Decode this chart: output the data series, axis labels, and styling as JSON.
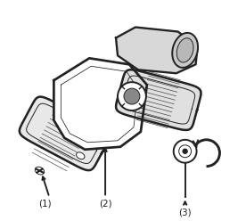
{
  "bg_color": "#ffffff",
  "line_color": "#222222",
  "label1": "(1)",
  "label2": "(2)",
  "label3": "(3)",
  "figsize": [
    2.76,
    2.48
  ],
  "dpi": 100,
  "xlim": [
    0,
    276
  ],
  "ylim": [
    248,
    0
  ]
}
